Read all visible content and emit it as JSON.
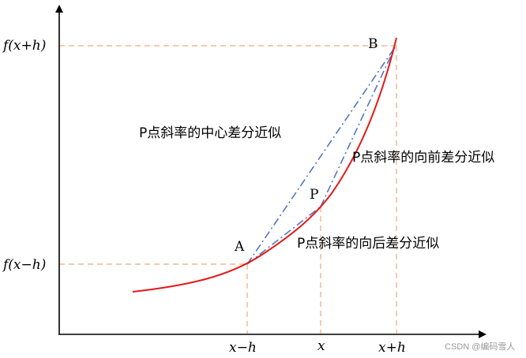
{
  "labels": {
    "f_x_plus_h": "f(x+h)",
    "f_x_minus_h": "f(x−h)",
    "point_a": "A",
    "point_b": "B",
    "point_p": "P",
    "x_minus_h": "x−h",
    "x": "x",
    "x_plus_h": "x+h",
    "central_diff": "P点斜率的中心差分近似",
    "forward_diff": "P点斜率的向前差分近似",
    "backward_diff": "P点斜率的向后差分近似"
  },
  "watermark": "CSDN @编码雪人",
  "colors": {
    "curve": "#e21a1a",
    "secant": "#4f78c0",
    "guide": "#f2a878",
    "axis": "#000000"
  }
}
